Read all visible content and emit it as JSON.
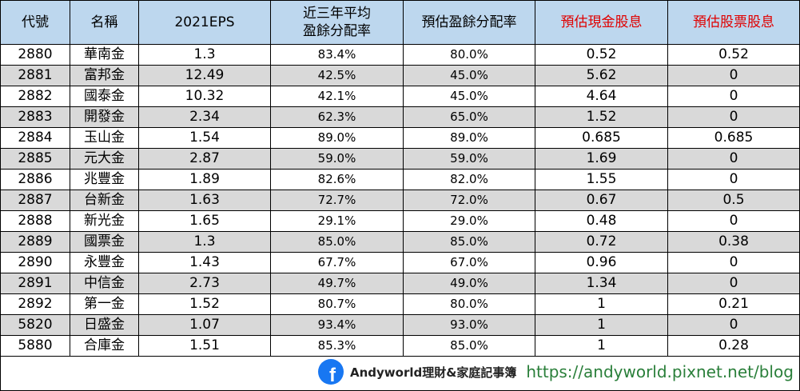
{
  "headers": [
    {
      "lines": [
        "代號"
      ],
      "red": false
    },
    {
      "lines": [
        "名稱"
      ],
      "red": false
    },
    {
      "lines": [
        "2021EPS"
      ],
      "red": false
    },
    {
      "lines": [
        "近三年平均",
        "盈餘分配率"
      ],
      "red": false
    },
    {
      "lines": [
        "預估盈餘分配率"
      ],
      "red": false
    },
    {
      "lines": [
        "預估現金股息"
      ],
      "red": true
    },
    {
      "lines": [
        "預估股票股息"
      ],
      "red": true
    }
  ],
  "rows": [
    [
      "2880",
      "華南金",
      "1.3",
      "83.4%",
      "80.0%",
      "0.52",
      "0.52"
    ],
    [
      "2881",
      "富邦金",
      "12.49",
      "42.5%",
      "45.0%",
      "5.62",
      "0"
    ],
    [
      "2882",
      "國泰金",
      "10.32",
      "42.1%",
      "45.0%",
      "4.64",
      "0"
    ],
    [
      "2883",
      "開發金",
      "2.34",
      "62.3%",
      "65.0%",
      "1.52",
      "0"
    ],
    [
      "2884",
      "玉山金",
      "1.54",
      "89.0%",
      "89.0%",
      "0.685",
      "0.685"
    ],
    [
      "2885",
      "元大金",
      "2.87",
      "59.0%",
      "59.0%",
      "1.69",
      "0"
    ],
    [
      "2886",
      "兆豐金",
      "1.89",
      "82.6%",
      "82.0%",
      "1.55",
      "0"
    ],
    [
      "2887",
      "台新金",
      "1.63",
      "72.7%",
      "72.0%",
      "0.67",
      "0.5"
    ],
    [
      "2888",
      "新光金",
      "1.65",
      "29.1%",
      "29.0%",
      "0.48",
      "0"
    ],
    [
      "2889",
      "國票金",
      "1.3",
      "85.0%",
      "85.0%",
      "0.72",
      "0.38"
    ],
    [
      "2890",
      "永豐金",
      "1.43",
      "67.7%",
      "67.0%",
      "0.96",
      "0"
    ],
    [
      "2891",
      "中信金",
      "2.73",
      "49.7%",
      "49.0%",
      "1.34",
      "0"
    ],
    [
      "2892",
      "第一金",
      "1.52",
      "80.7%",
      "80.0%",
      "1",
      "0.21"
    ],
    [
      "5820",
      "日盛金",
      "1.07",
      "93.4%",
      "93.0%",
      "1",
      "0"
    ],
    [
      "5880",
      "合庫金",
      "1.51",
      "85.3%",
      "85.0%",
      "1",
      "0.28"
    ]
  ],
  "watermark": {
    "icon": "facebook-icon",
    "icon_letter": "f",
    "name": "Andyworld理財&家庭記事簿",
    "url": "https://andyworld.pixnet.net/blog"
  },
  "colors": {
    "header_bg": "#bdd7ee",
    "alt_row_bg": "#d9d9d9",
    "header_red_text": "#e00000",
    "url_green": "#2a7f3a",
    "facebook_blue": "#1877f2"
  }
}
